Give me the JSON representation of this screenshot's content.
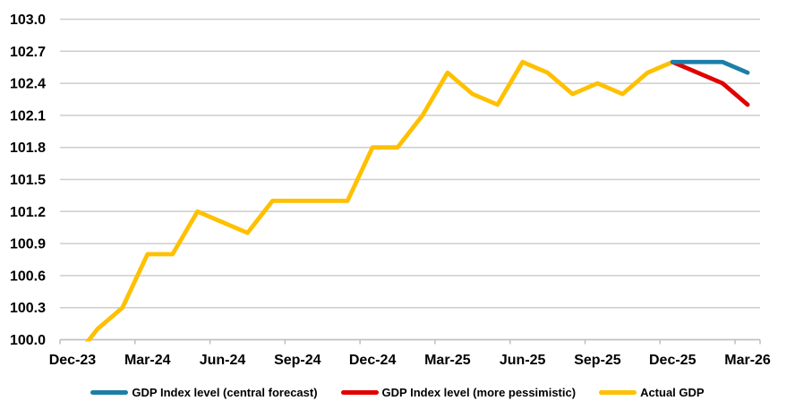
{
  "chart_data": {
    "type": "line",
    "title": "",
    "categories": [
      "Dec-23",
      "Jan-24",
      "Feb-24",
      "Mar-24",
      "Apr-24",
      "May-24",
      "Jun-24",
      "Jul-24",
      "Aug-24",
      "Sep-24",
      "Oct-24",
      "Nov-24",
      "Dec-24",
      "Jan-25",
      "Feb-25",
      "Mar-25",
      "Apr-25",
      "May-25",
      "Jun-25",
      "Jul-25",
      "Aug-25",
      "Sep-25",
      "Oct-25",
      "Nov-25",
      "Dec-25",
      "Jan-26",
      "Feb-26",
      "Mar-26"
    ],
    "label_every": 3,
    "xlabel": "",
    "ylabel": "",
    "ylim": [
      100.0,
      103.0
    ],
    "y_step": 0.3,
    "y_tick_labels": [
      "100.0",
      "100.3",
      "100.6",
      "100.9",
      "101.2",
      "101.5",
      "101.8",
      "102.1",
      "102.4",
      "102.7",
      "103.0"
    ],
    "grid": true,
    "grid_color": "#CDCDCD",
    "axis_color": "#BFBFBF",
    "legend_position": "bottom",
    "series": [
      {
        "id": "central-forecast",
        "name": "GDP Index level (central forecast)",
        "color": "#1C7FA7",
        "values": [
          null,
          null,
          null,
          null,
          null,
          null,
          null,
          null,
          null,
          null,
          null,
          null,
          null,
          null,
          null,
          null,
          null,
          null,
          null,
          null,
          null,
          null,
          null,
          null,
          102.6,
          102.6,
          102.6,
          102.5
        ]
      },
      {
        "id": "more-pessimistic",
        "name": "GDP Index level (more pessimistic)",
        "color": "#E00000",
        "values": [
          null,
          null,
          null,
          null,
          null,
          null,
          null,
          null,
          null,
          null,
          null,
          null,
          null,
          null,
          null,
          null,
          null,
          null,
          null,
          null,
          null,
          null,
          null,
          null,
          102.6,
          102.5,
          102.4,
          102.2
        ]
      },
      {
        "id": "actual-gdp",
        "name": "Actual GDP",
        "color": "#FFC000",
        "values": [
          99.8,
          100.1,
          100.3,
          100.8,
          100.8,
          101.2,
          101.1,
          101.0,
          101.3,
          101.3,
          101.3,
          101.3,
          101.8,
          101.8,
          102.1,
          102.5,
          102.3,
          102.2,
          102.6,
          102.5,
          102.3,
          102.4,
          102.3,
          102.5,
          102.6,
          null,
          null,
          null
        ]
      }
    ]
  }
}
